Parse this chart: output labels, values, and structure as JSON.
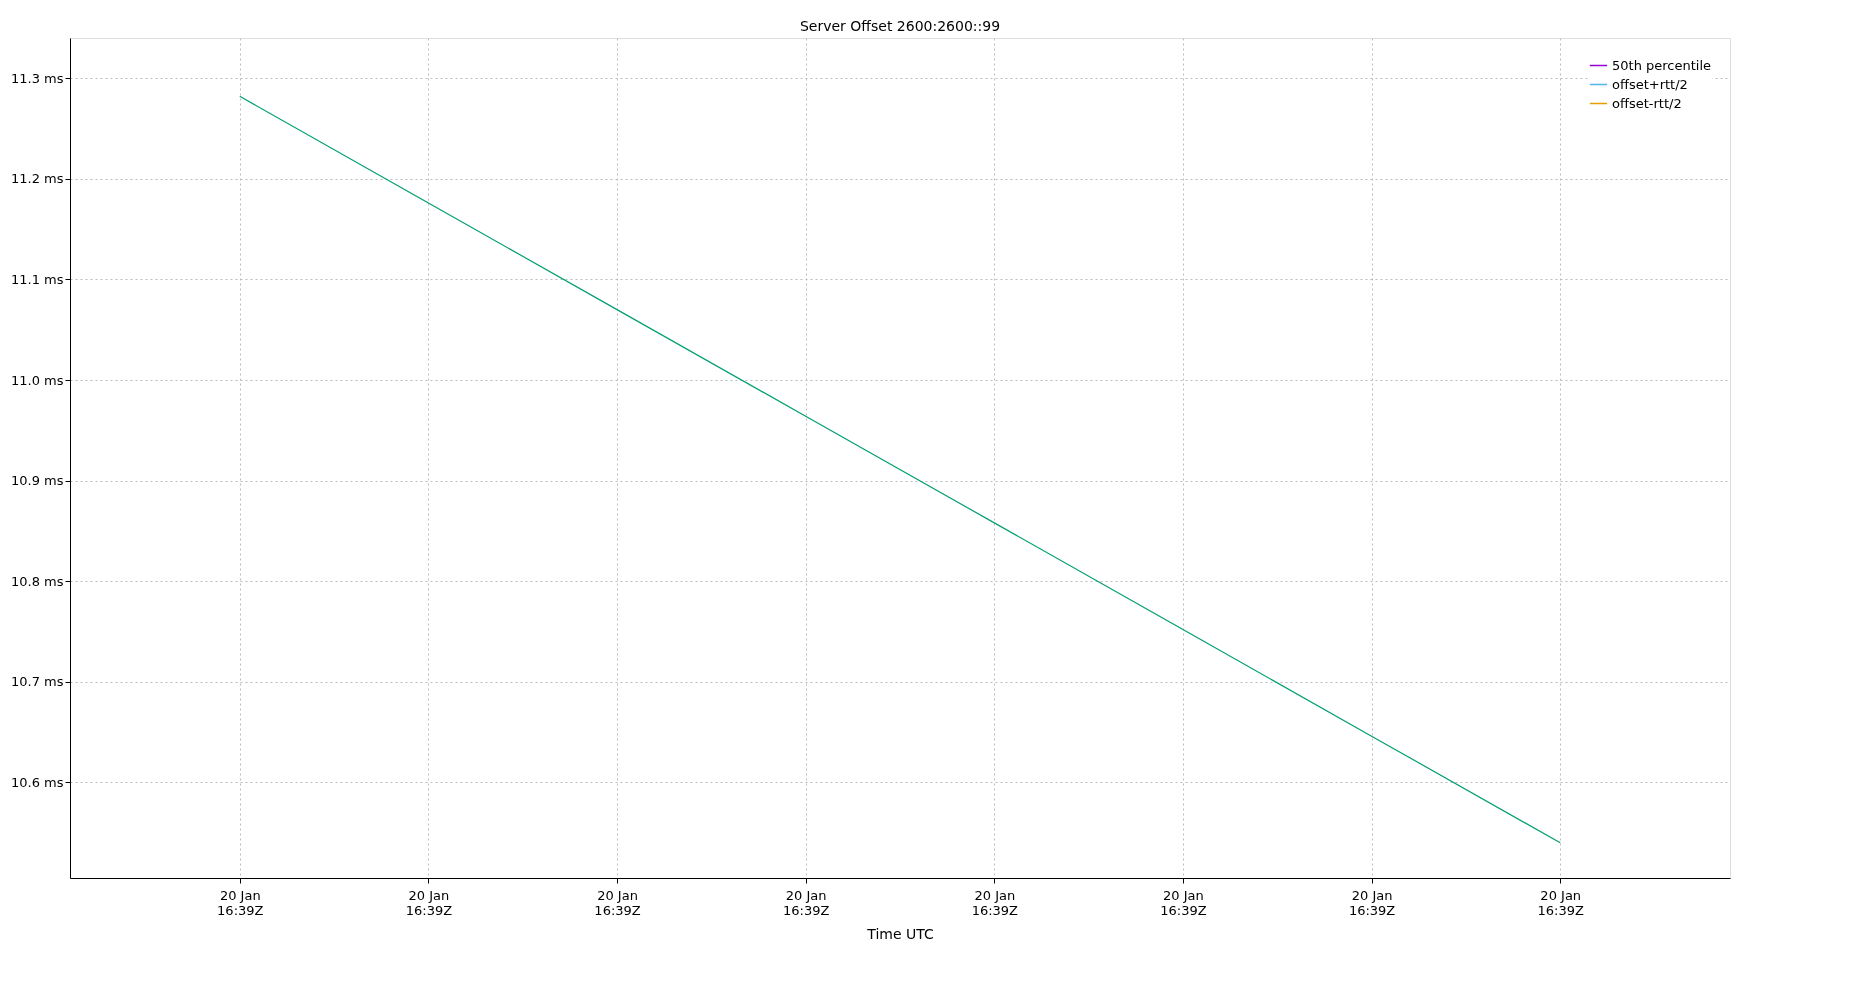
{
  "chart_data": {
    "type": "line",
    "title": "Server Offset 2600:2600::99",
    "xlabel": "Time UTC",
    "categories": [
      "20 Jan\n16:39Z",
      "20 Jan\n16:39Z",
      "20 Jan\n16:39Z",
      "20 Jan\n16:39Z",
      "20 Jan\n16:39Z",
      "20 Jan\n16:39Z",
      "20 Jan\n16:39Z",
      "20 Jan\n16:39Z"
    ],
    "series": [
      {
        "name": "50th percentile",
        "color": "#9400d3",
        "values": [
          null,
          null,
          null,
          null,
          null,
          null,
          null,
          null
        ]
      },
      {
        "color": "#009e73",
        "values": [
          11.282,
          11.176,
          11.07,
          10.964,
          10.858,
          10.752,
          10.646,
          10.54
        ]
      },
      {
        "name": "offset+rtt/2",
        "color": "#56b4e9",
        "values": [
          null,
          null,
          null,
          null,
          null,
          null,
          null,
          null
        ]
      },
      {
        "name": "offset-rtt/2",
        "color": "#e69f00",
        "values": [
          null,
          null,
          null,
          null,
          null,
          null,
          null,
          null
        ]
      }
    ],
    "ylim": [
      10.505,
      11.34
    ],
    "yticks": [
      {
        "value": 10.6,
        "label": "10.6 ms"
      },
      {
        "value": 10.7,
        "label": "10.7 ms"
      },
      {
        "value": 10.8,
        "label": "10.8 ms"
      },
      {
        "value": 10.9,
        "label": "10.9 ms"
      },
      {
        "value": 11.0,
        "label": "11.0 ms"
      },
      {
        "value": 11.1,
        "label": "11.1 ms"
      },
      {
        "value": 11.2,
        "label": "11.2 ms"
      },
      {
        "value": 11.3,
        "label": "11.3 ms"
      }
    ],
    "grid": true,
    "legend": "top right",
    "marker": "none",
    "line_style": "solid"
  }
}
